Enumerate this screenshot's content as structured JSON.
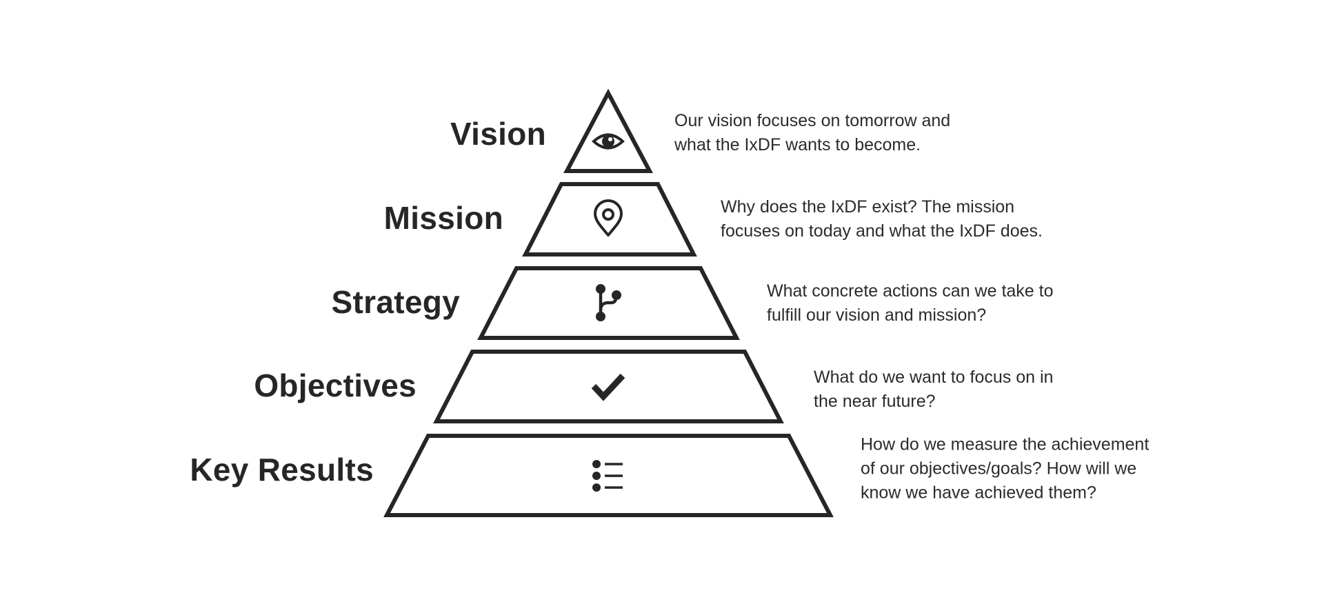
{
  "colors": {
    "stroke": "#262626",
    "text": "#262626",
    "background": "#ffffff"
  },
  "tiers": [
    {
      "id": "vision",
      "label": "Vision",
      "icon": "eye-icon",
      "description": [
        "Our vision focuses on tomorrow and",
        "what the IxDF wants to become."
      ]
    },
    {
      "id": "mission",
      "label": "Mission",
      "icon": "location-pin-icon",
      "description": [
        "Why does the IxDF exist? The mission",
        "focuses on today and what the IxDF does."
      ]
    },
    {
      "id": "strategy",
      "label": "Strategy",
      "icon": "branch-icon",
      "description": [
        "What concrete actions can we take to",
        "fulfill our vision and mission?"
      ]
    },
    {
      "id": "objectives",
      "label": "Objectives",
      "icon": "checkmark-icon",
      "description": [
        "What do we want to focus on in",
        "the near future?"
      ]
    },
    {
      "id": "key-results",
      "label": "Key Results",
      "icon": "list-icon",
      "description": [
        "How do we measure the achievement",
        "of our objectives/goals? How will we",
        "know we have achieved them?"
      ]
    }
  ]
}
